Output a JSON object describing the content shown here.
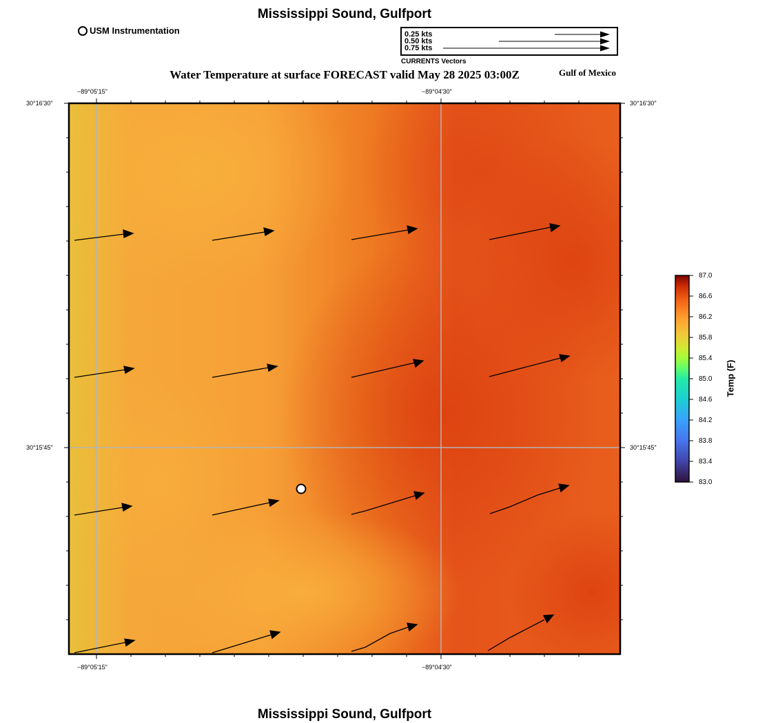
{
  "header": {
    "location_title": "Mississippi Sound, Gulfport",
    "usm_legend": "USM Instrumentation",
    "main_title": "Water Temperature at surface FORECAST valid May 28 2025 03:00Z",
    "region": "Gulf of Mexico"
  },
  "vector_legend": {
    "items": [
      "0.25 kts",
      "0.50 kts",
      "0.75 kts"
    ],
    "speeds": [
      0.25,
      0.5,
      0.75
    ],
    "caption": "CURRENTS Vectors"
  },
  "axes": {
    "x_ticks": [
      "−89°05'15\"",
      "−89°04'30\""
    ],
    "y_ticks": [
      "30°16'30\"",
      "30°15'45\""
    ]
  },
  "colorbar": {
    "title": "Temp (F)",
    "ticks": [
      "87.0",
      "86.6",
      "86.2",
      "85.8",
      "85.4",
      "85.0",
      "84.6",
      "84.2",
      "83.8",
      "83.4",
      "83.0"
    ],
    "min": 83.0,
    "max": 87.0
  },
  "footer": {
    "location_title": "Mississippi Sound, Gulfport"
  },
  "colors": {
    "warm_orange": "#f7a13a",
    "deep_orange": "#e4480f",
    "yellow": "#e8c23a"
  }
}
